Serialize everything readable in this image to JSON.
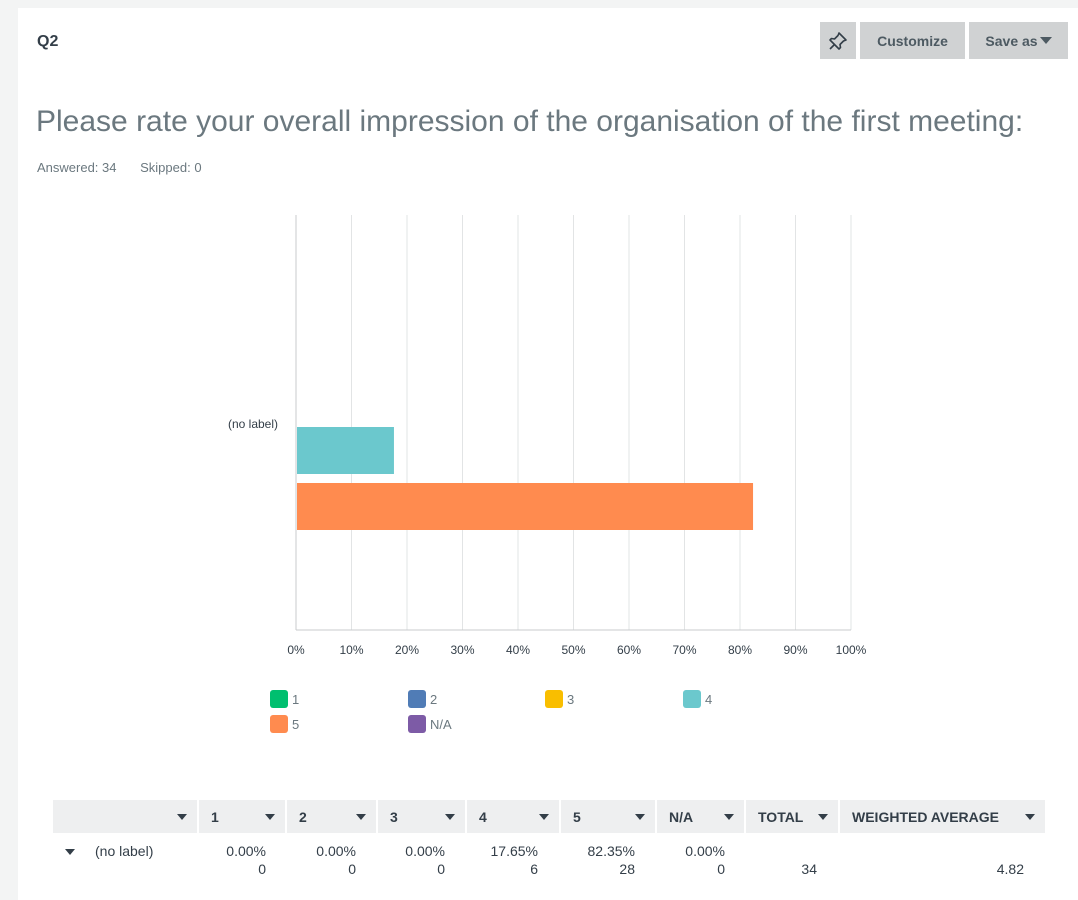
{
  "header": {
    "question_number": "Q2",
    "customize_label": "Customize",
    "save_as_label": "Save as"
  },
  "question": {
    "title": "Please rate your overall impression of the organisation of the first meeting:",
    "answered": "Answered: 34",
    "skipped": "Skipped: 0"
  },
  "chart_data": {
    "type": "bar",
    "orientation": "horizontal",
    "categories": [
      "(no label)"
    ],
    "series": [
      {
        "name": "1",
        "values": [
          0
        ],
        "color": "#00bf6f"
      },
      {
        "name": "2",
        "values": [
          0
        ],
        "color": "#507cb6"
      },
      {
        "name": "3",
        "values": [
          0
        ],
        "color": "#f9be00"
      },
      {
        "name": "4",
        "values": [
          17.65
        ],
        "color": "#6bc8cd"
      },
      {
        "name": "5",
        "values": [
          82.35
        ],
        "color": "#ff8b4f"
      },
      {
        "name": "N/A",
        "values": [
          0
        ],
        "color": "#7d5ba6"
      }
    ],
    "xlim": [
      0,
      100
    ],
    "x_ticks": [
      "0%",
      "10%",
      "20%",
      "30%",
      "40%",
      "50%",
      "60%",
      "70%",
      "80%",
      "90%",
      "100%"
    ],
    "grid": true,
    "legend_position": "bottom"
  },
  "table": {
    "headers": [
      "",
      "1",
      "2",
      "3",
      "4",
      "5",
      "N/A",
      "TOTAL",
      "WEIGHTED AVERAGE"
    ],
    "rows": [
      {
        "label": "(no label)",
        "percents": [
          "0.00%",
          "0.00%",
          "0.00%",
          "17.65%",
          "82.35%",
          "0.00%"
        ],
        "counts": [
          "0",
          "0",
          "0",
          "6",
          "28",
          "0"
        ],
        "total": "34",
        "weighted_average": "4.82"
      }
    ]
  }
}
